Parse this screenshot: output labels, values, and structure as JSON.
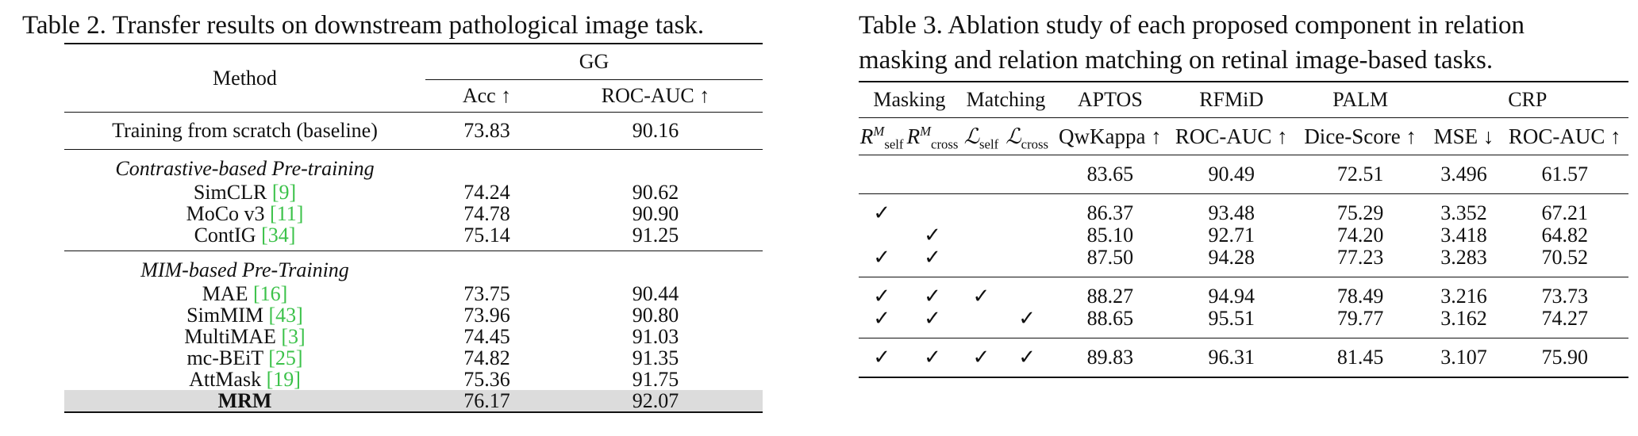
{
  "table2": {
    "caption": "Table 2. Transfer results on downstream pathological image task.",
    "col_method": "Method",
    "col_group": "GG",
    "col_acc": "Acc ↑",
    "col_rocauc": "ROC-AUC ↑",
    "baseline": {
      "method": "Training from scratch (baseline)",
      "acc": "73.83",
      "auc": "90.16"
    },
    "section_contrastive": "Contrastive-based Pre-training",
    "contrastive": [
      {
        "method": "SimCLR",
        "cite": "[9]",
        "acc": "74.24",
        "auc": "90.62"
      },
      {
        "method": "MoCo v3",
        "cite": "[11]",
        "acc": "74.78",
        "auc": "90.90"
      },
      {
        "method": "ContIG",
        "cite": "[34]",
        "acc": "75.14",
        "auc": "91.25"
      }
    ],
    "section_mim": "MIM-based Pre-Training",
    "mim": [
      {
        "method": "MAE",
        "cite": "[16]",
        "acc": "73.75",
        "auc": "90.44"
      },
      {
        "method": "SimMIM",
        "cite": "[43]",
        "acc": "73.96",
        "auc": "90.80"
      },
      {
        "method": "MultiMAE",
        "cite": "[3]",
        "acc": "74.45",
        "auc": "91.03"
      },
      {
        "method": "mc-BEiT",
        "cite": "[25]",
        "acc": "74.82",
        "auc": "91.35"
      },
      {
        "method": "AttMask",
        "cite": "[19]",
        "acc": "75.36",
        "auc": "91.75"
      }
    ],
    "mrm": {
      "method": "MRM",
      "acc": "76.17",
      "auc": "92.07"
    }
  },
  "table3": {
    "caption_line1": "Table 3. Ablation study of each proposed component in relation",
    "caption_line2": "masking and relation matching on retinal image-based tasks.",
    "groups": {
      "masking": "Masking",
      "matching": "Matching",
      "aptos": "APTOS",
      "rfmid": "RFMiD",
      "palm": "PALM",
      "crp": "CRP"
    },
    "sub": {
      "r": "R",
      "m": "M",
      "self": "self",
      "cross": "cross",
      "l": "ℒ",
      "qwkappa": "QwKappa ↑",
      "rocauc": "ROC-AUC ↑",
      "dice": "Dice-Score ↑",
      "mse": "MSE ↓",
      "crp_auc": "ROC-AUC ↑"
    },
    "check": "✓",
    "baseline": {
      "aptos": "83.65",
      "rfmid": "90.49",
      "palm": "72.51",
      "mse": "3.496",
      "auc": "61.57"
    },
    "block2": [
      {
        "rs": "✓",
        "rc": "",
        "aptos": "86.37",
        "rfmid": "93.48",
        "palm": "75.29",
        "mse": "3.352",
        "auc": "67.21"
      },
      {
        "rs": "",
        "rc": "✓",
        "aptos": "85.10",
        "rfmid": "92.71",
        "palm": "74.20",
        "mse": "3.418",
        "auc": "64.82"
      },
      {
        "rs": "✓",
        "rc": "✓",
        "aptos": "87.50",
        "rfmid": "94.28",
        "palm": "77.23",
        "mse": "3.283",
        "auc": "70.52"
      }
    ],
    "block3": [
      {
        "rs": "✓",
        "rc": "✓",
        "ls": "✓",
        "lc": "",
        "aptos": "88.27",
        "rfmid": "94.94",
        "palm": "78.49",
        "mse": "3.216",
        "auc": "73.73"
      },
      {
        "rs": "✓",
        "rc": "✓",
        "ls": "",
        "lc": "✓",
        "aptos": "88.65",
        "rfmid": "95.51",
        "palm": "79.77",
        "mse": "3.162",
        "auc": "74.27"
      }
    ],
    "full": {
      "aptos": "89.83",
      "rfmid": "96.31",
      "palm": "81.45",
      "mse": "3.107",
      "auc": "75.90"
    }
  }
}
